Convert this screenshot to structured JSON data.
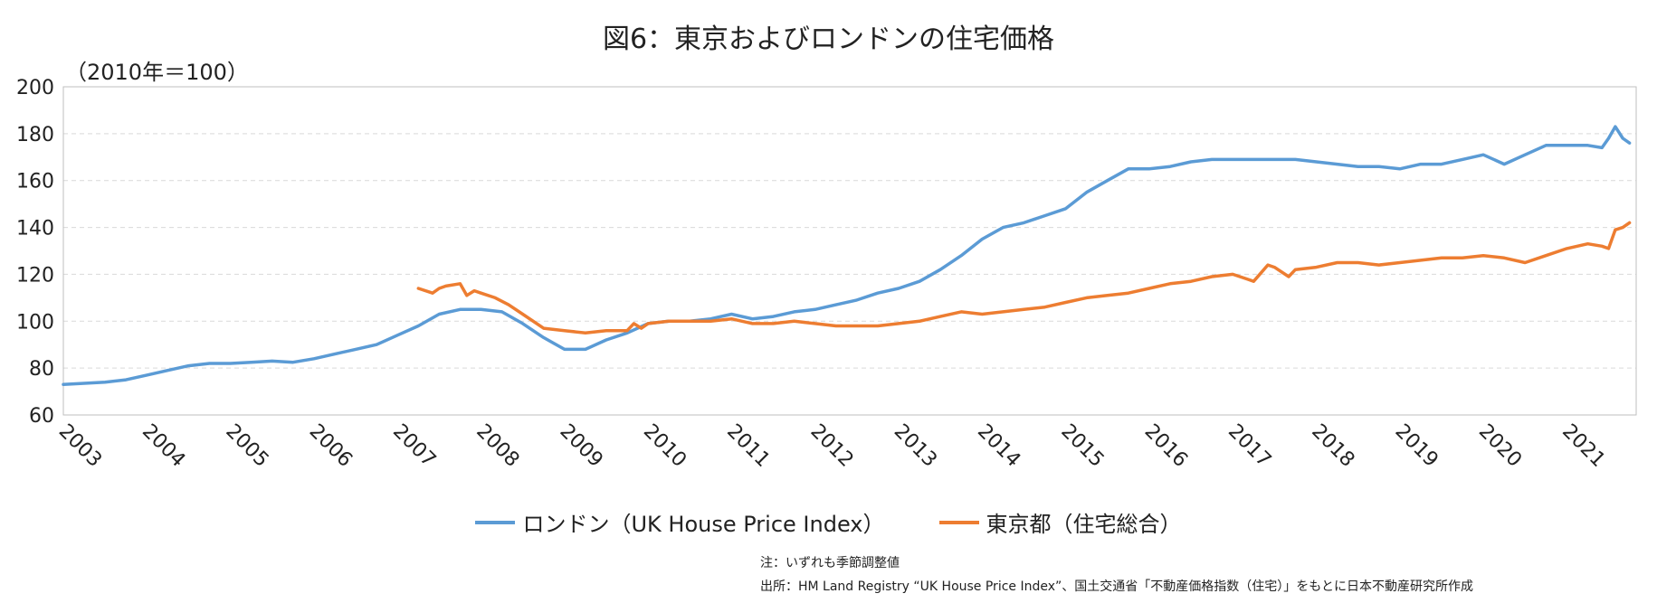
{
  "title": "図6：東京およびロンドンの住宅価格",
  "unit_label": "（2010年＝100）",
  "note": "注：いずれも季節調整値",
  "source": "出所：HM Land Registry “UK House Price Index”、国土交通省「不動産価格指数（住宅）」をもとに日本不動産研究所作成",
  "chart_data": {
    "type": "line",
    "title": "図6：東京およびロンドンの住宅価格",
    "ylabel": "（2010年＝100）",
    "xlabel": "",
    "ylim": [
      60,
      200
    ],
    "yticks": [
      "60",
      "80",
      "100",
      "120",
      "140",
      "160",
      "180",
      "200"
    ],
    "xlim": [
      2003.0,
      2021.83
    ],
    "xticks": [
      "2003",
      "2004",
      "2005",
      "2006",
      "2007",
      "2008",
      "2009",
      "2010",
      "2011",
      "2012",
      "2013",
      "2014",
      "2015",
      "2016",
      "2017",
      "2018",
      "2019",
      "2020",
      "2021"
    ],
    "grid": true,
    "legend_position": "bottom",
    "series": [
      {
        "name": "ロンドン（UK House Price Index）",
        "color": "#5B9BD5",
        "x": [
          2003.0,
          2003.25,
          2003.5,
          2003.75,
          2004.0,
          2004.25,
          2004.5,
          2004.75,
          2005.0,
          2005.25,
          2005.5,
          2005.75,
          2006.0,
          2006.25,
          2006.5,
          2006.75,
          2007.0,
          2007.25,
          2007.5,
          2007.75,
          2008.0,
          2008.25,
          2008.5,
          2008.75,
          2009.0,
          2009.25,
          2009.5,
          2009.75,
          2010.0,
          2010.25,
          2010.5,
          2010.75,
          2011.0,
          2011.25,
          2011.5,
          2011.75,
          2012.0,
          2012.25,
          2012.5,
          2012.75,
          2013.0,
          2013.25,
          2013.5,
          2013.75,
          2014.0,
          2014.25,
          2014.5,
          2014.75,
          2015.0,
          2015.25,
          2015.5,
          2015.75,
          2016.0,
          2016.25,
          2016.5,
          2016.75,
          2017.0,
          2017.25,
          2017.5,
          2017.75,
          2018.0,
          2018.25,
          2018.5,
          2018.75,
          2019.0,
          2019.25,
          2019.5,
          2019.75,
          2020.0,
          2020.25,
          2020.5,
          2020.75,
          2021.0,
          2021.25,
          2021.42,
          2021.5,
          2021.58,
          2021.67,
          2021.75
        ],
        "y": [
          73,
          73.5,
          74,
          75,
          77,
          79,
          81,
          82,
          82,
          82.5,
          83,
          82.5,
          84,
          86,
          88,
          90,
          94,
          98,
          103,
          105,
          105,
          104,
          99,
          93,
          88,
          88,
          92,
          95,
          99,
          100,
          100,
          101,
          103,
          101,
          102,
          104,
          105,
          107,
          109,
          112,
          114,
          117,
          122,
          128,
          135,
          140,
          142,
          145,
          148,
          155,
          160,
          165,
          165,
          166,
          168,
          169,
          169,
          169,
          169,
          169,
          168,
          167,
          166,
          166,
          165,
          167,
          167,
          169,
          171,
          167,
          171,
          175,
          175,
          175,
          174,
          178,
          183,
          178,
          176
        ]
      },
      {
        "name": "東京都（住宅総合）",
        "color": "#ED7D31",
        "x": [
          2007.25,
          2007.42,
          2007.5,
          2007.58,
          2007.75,
          2007.83,
          2007.92,
          2008.0,
          2008.17,
          2008.33,
          2008.5,
          2008.75,
          2009.0,
          2009.25,
          2009.5,
          2009.75,
          2009.83,
          2009.92,
          2010.0,
          2010.25,
          2010.5,
          2010.75,
          2011.0,
          2011.25,
          2011.5,
          2011.75,
          2012.0,
          2012.25,
          2012.5,
          2012.75,
          2013.0,
          2013.25,
          2013.5,
          2013.75,
          2014.0,
          2014.25,
          2014.5,
          2014.75,
          2015.0,
          2015.25,
          2015.5,
          2015.75,
          2016.0,
          2016.25,
          2016.5,
          2016.75,
          2017.0,
          2017.17,
          2017.25,
          2017.42,
          2017.5,
          2017.67,
          2017.75,
          2018.0,
          2018.25,
          2018.5,
          2018.75,
          2019.0,
          2019.25,
          2019.5,
          2019.75,
          2020.0,
          2020.25,
          2020.5,
          2020.75,
          2021.0,
          2021.25,
          2021.42,
          2021.5,
          2021.58,
          2021.67,
          2021.75
        ],
        "y": [
          114,
          112,
          114,
          115,
          116,
          111,
          113,
          112,
          110,
          107,
          103,
          97,
          96,
          95,
          96,
          96,
          99,
          97,
          99,
          100,
          100,
          100,
          101,
          99,
          99,
          100,
          99,
          98,
          98,
          98,
          99,
          100,
          102,
          104,
          103,
          104,
          105,
          106,
          108,
          110,
          111,
          112,
          114,
          116,
          117,
          119,
          120,
          118,
          117,
          124,
          123,
          119,
          122,
          123,
          125,
          125,
          124,
          125,
          126,
          127,
          127,
          128,
          127,
          125,
          128,
          131,
          133,
          132,
          131,
          139,
          140,
          142
        ]
      }
    ]
  }
}
